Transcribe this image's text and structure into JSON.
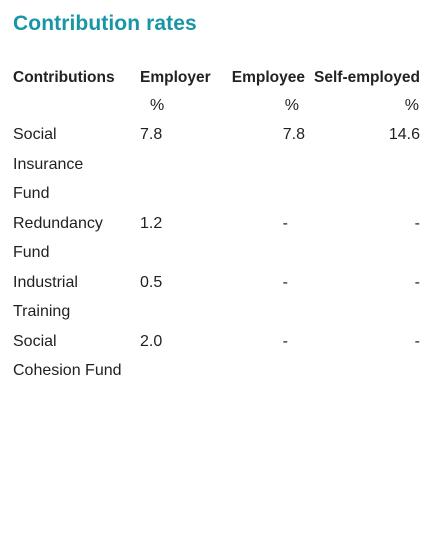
{
  "title": "Contribution rates",
  "table": {
    "headers": [
      "Contributions",
      "Employer",
      "Employee",
      "Self-employed"
    ],
    "units": [
      "",
      "%",
      "%",
      "%"
    ],
    "rows": [
      {
        "contribution": "Social Insurance Fund",
        "employer": "7.8",
        "employee": "7.8",
        "self_employed": "14.6"
      },
      {
        "contribution": "Redundancy Fund",
        "employer": "1.2",
        "employee": "-",
        "self_employed": "-"
      },
      {
        "contribution": "Industrial Training",
        "employer": "0.5",
        "employee": "-",
        "self_employed": "-"
      },
      {
        "contribution": "Social Cohesion Fund",
        "employer": "2.0",
        "employee": "-",
        "self_employed": "-"
      }
    ]
  }
}
